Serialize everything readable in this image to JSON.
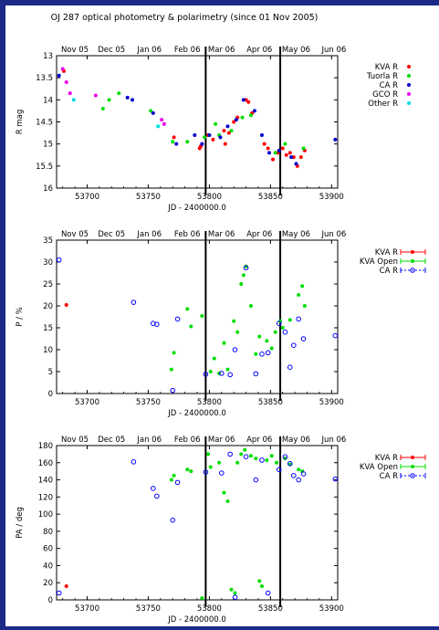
{
  "page_title": "OJ 287 optical photometry & polarimetry (since 01 Nov 2005)",
  "colors": {
    "frame": "#1a2a86",
    "kva": "#ff0000",
    "tuorla": "#00dd00",
    "ca": "#0000cc",
    "gco": "#ee00ee",
    "other": "#00dddd",
    "kva_open": "#00dd00",
    "ca_open": "#0000ff"
  },
  "chart_data": [
    {
      "type": "scatter",
      "title": "",
      "xlabel": "JD - 2400000.0",
      "ylabel": "R mag",
      "xlim": [
        53675,
        53905
      ],
      "ylim": [
        16,
        13
      ],
      "y_inverted": true,
      "xticks": [
        "53700",
        "53750",
        "53800",
        "53850",
        "53900"
      ],
      "yticks": [
        "13",
        "13.5",
        "14",
        "14.5",
        "15",
        "15.5",
        "16"
      ],
      "top_axis_labels": [
        "Nov 05",
        "Dec 05",
        "Jan 06",
        "Feb 06",
        "Mar 06",
        "Apr 06",
        "May 06",
        "Jun 06"
      ],
      "top_axis_positions": [
        53675,
        53705,
        53736,
        53767,
        53795,
        53826,
        53856,
        53887
      ],
      "vertical_lines": [
        53797,
        53858
      ],
      "legend_placement": "right",
      "series": [
        {
          "name": "KVA R",
          "color": "#ff0000",
          "points": [
            [
              53681,
              13.35
            ],
            [
              53771,
              14.85
            ],
            [
              53792,
              15.1
            ],
            [
              53793,
              15.05
            ],
            [
              53799,
              14.8
            ],
            [
              53803,
              14.9
            ],
            [
              53812,
              14.7
            ],
            [
              53813,
              15.0
            ],
            [
              53816,
              14.75
            ],
            [
              53820,
              14.5
            ],
            [
              53823,
              14.4
            ],
            [
              53830,
              14.0
            ],
            [
              53832,
              14.05
            ],
            [
              53835,
              14.3
            ],
            [
              53845,
              15.0
            ],
            [
              53848,
              15.1
            ],
            [
              53852,
              15.35
            ],
            [
              53856,
              15.2
            ],
            [
              53860,
              15.1
            ],
            [
              53863,
              15.25
            ],
            [
              53866,
              15.2
            ],
            [
              53869,
              15.3
            ],
            [
              53872,
              15.5
            ],
            [
              53875,
              15.3
            ],
            [
              53878,
              15.15
            ]
          ]
        },
        {
          "name": "Tuorla R",
          "color": "#00dd00",
          "points": [
            [
              53713,
              14.2
            ],
            [
              53718,
              14.0
            ],
            [
              53726,
              13.85
            ],
            [
              53752,
              14.25
            ],
            [
              53770,
              14.95
            ],
            [
              53782,
              14.95
            ],
            [
              53796,
              14.85
            ],
            [
              53805,
              14.55
            ],
            [
              53808,
              14.8
            ],
            [
              53818,
              14.7
            ],
            [
              53827,
              14.4
            ],
            [
              53834,
              14.35
            ],
            [
              53854,
              15.2
            ],
            [
              53862,
              15.0
            ],
            [
              53877,
              15.1
            ]
          ]
        },
        {
          "name": "CA R",
          "color": "#0000cc",
          "points": [
            [
              53677,
              13.45
            ],
            [
              53733,
              13.95
            ],
            [
              53737,
              14.0
            ],
            [
              53754,
              14.3
            ],
            [
              53773,
              15.0
            ],
            [
              53788,
              14.8
            ],
            [
              53794,
              15.0
            ],
            [
              53800,
              14.8
            ],
            [
              53809,
              14.85
            ],
            [
              53815,
              14.6
            ],
            [
              53822,
              14.45
            ],
            [
              53828,
              14.0
            ],
            [
              53837,
              14.25
            ],
            [
              53843,
              14.8
            ],
            [
              53849,
              15.2
            ],
            [
              53857,
              15.15
            ],
            [
              53867,
              15.3
            ],
            [
              53871,
              15.45
            ],
            [
              53903,
              14.9
            ]
          ]
        },
        {
          "name": "GCO R",
          "color": "#ee00ee",
          "points": [
            [
              53680,
              13.3
            ],
            [
              53683,
              13.6
            ],
            [
              53686,
              13.85
            ],
            [
              53707,
              13.9
            ],
            [
              53761,
              14.45
            ],
            [
              53763,
              14.55
            ]
          ]
        },
        {
          "name": "Other R",
          "color": "#00dddd",
          "points": [
            [
              53689,
              14.0
            ],
            [
              53758,
              14.6
            ]
          ]
        }
      ]
    },
    {
      "type": "scatter",
      "title": "",
      "xlabel": "JD - 2400000.0",
      "ylabel": "P / %",
      "xlim": [
        53675,
        53905
      ],
      "ylim": [
        0,
        35
      ],
      "xticks": [
        "53700",
        "53750",
        "53800",
        "53850",
        "53900"
      ],
      "yticks": [
        "0",
        "5",
        "10",
        "15",
        "20",
        "25",
        "30",
        "35"
      ],
      "top_axis_labels": [
        "Nov 05",
        "Dec 05",
        "Jan 06",
        "Feb 06",
        "Mar 06",
        "Apr 06",
        "May 06",
        "Jun 06"
      ],
      "top_axis_positions": [
        53675,
        53705,
        53736,
        53767,
        53795,
        53826,
        53856,
        53887
      ],
      "vertical_lines": [
        53797,
        53858
      ],
      "legend_placement": "right",
      "series": [
        {
          "name": "KVA R",
          "color": "#ff0000",
          "points": [
            [
              53683,
              20.2
            ]
          ]
        },
        {
          "name": "KVA Open",
          "color": "#00dd00",
          "points": [
            [
              53769,
              5.5
            ],
            [
              53771,
              9.3
            ],
            [
              53782,
              19.3
            ],
            [
              53785,
              15.3
            ],
            [
              53794,
              17.7
            ],
            [
              53801,
              5.0
            ],
            [
              53804,
              8.0
            ],
            [
              53808,
              4.6
            ],
            [
              53812,
              11.5
            ],
            [
              53815,
              5.5
            ],
            [
              53820,
              16.5
            ],
            [
              53823,
              14.0
            ],
            [
              53826,
              25.0
            ],
            [
              53828,
              27.0
            ],
            [
              53830,
              29.0
            ],
            [
              53834,
              20.0
            ],
            [
              53838,
              9.0
            ],
            [
              53841,
              13.0
            ],
            [
              53847,
              12.0
            ],
            [
              53851,
              10.3
            ],
            [
              53854,
              14.0
            ],
            [
              53858,
              16.5
            ],
            [
              53860,
              15.0
            ],
            [
              53866,
              16.8
            ],
            [
              53873,
              22.5
            ],
            [
              53876,
              24.5
            ],
            [
              53878,
              20.0
            ]
          ]
        },
        {
          "name": "CA R",
          "color": "#0000ff",
          "points": [
            [
              53677,
              30.5
            ],
            [
              53738,
              20.8
            ],
            [
              53754,
              16.0
            ],
            [
              53757,
              15.8
            ],
            [
              53770,
              0.7
            ],
            [
              53774,
              17.0
            ],
            [
              53797,
              4.4
            ],
            [
              53810,
              4.6
            ],
            [
              53817,
              4.3
            ],
            [
              53821,
              10.0
            ],
            [
              53830,
              28.7
            ],
            [
              53838,
              4.5
            ],
            [
              53843,
              9.0
            ],
            [
              53848,
              9.3
            ],
            [
              53857,
              16.0
            ],
            [
              53862,
              14.0
            ],
            [
              53866,
              6.0
            ],
            [
              53869,
              11.0
            ],
            [
              53873,
              17.0
            ],
            [
              53877,
              12.5
            ],
            [
              53903,
              13.2
            ]
          ]
        }
      ]
    },
    {
      "type": "scatter",
      "title": "",
      "xlabel": "JD - 2400000.0",
      "ylabel": "PA / deg",
      "xlim": [
        53675,
        53905
      ],
      "ylim": [
        0,
        180
      ],
      "xticks": [
        "53700",
        "53750",
        "53800",
        "53850",
        "53900"
      ],
      "yticks": [
        "0",
        "20",
        "40",
        "60",
        "80",
        "100",
        "120",
        "140",
        "160",
        "180"
      ],
      "top_axis_labels": [
        "Nov 05",
        "Dec 05",
        "Jan 06",
        "Feb 06",
        "Mar 06",
        "Apr 06",
        "May 06",
        "Jun 06"
      ],
      "top_axis_positions": [
        53675,
        53705,
        53736,
        53767,
        53795,
        53826,
        53856,
        53887
      ],
      "vertical_lines": [
        53797,
        53858
      ],
      "legend_placement": "right",
      "series": [
        {
          "name": "KVA R",
          "color": "#ff0000",
          "points": [
            [
              53683,
              16
            ]
          ]
        },
        {
          "name": "KVA Open",
          "color": "#00dd00",
          "points": [
            [
              53769,
              140
            ],
            [
              53771,
              145
            ],
            [
              53782,
              152
            ],
            [
              53785,
              150
            ],
            [
              53794,
              2
            ],
            [
              53799,
              170
            ],
            [
              53801,
              155
            ],
            [
              53808,
              160
            ],
            [
              53812,
              125
            ],
            [
              53815,
              115
            ],
            [
              53818,
              12
            ],
            [
              53821,
              8
            ],
            [
              53823,
              160
            ],
            [
              53826,
              170
            ],
            [
              53829,
              175
            ],
            [
              53834,
              168
            ],
            [
              53838,
              165
            ],
            [
              53841,
              22
            ],
            [
              53843,
              16
            ],
            [
              53847,
              163
            ],
            [
              53851,
              168
            ],
            [
              53855,
              160
            ],
            [
              53862,
              165
            ],
            [
              53866,
              158
            ],
            [
              53873,
              152
            ],
            [
              53876,
              150
            ]
          ]
        },
        {
          "name": "CA R",
          "color": "#0000ff",
          "points": [
            [
              53677,
              8
            ],
            [
              53738,
              161
            ],
            [
              53754,
              130
            ],
            [
              53757,
              121
            ],
            [
              53770,
              93
            ],
            [
              53774,
              137
            ],
            [
              53797,
              149
            ],
            [
              53810,
              148
            ],
            [
              53817,
              170
            ],
            [
              53821,
              3
            ],
            [
              53830,
              167
            ],
            [
              53838,
              140
            ],
            [
              53843,
              163
            ],
            [
              53848,
              8
            ],
            [
              53857,
              152
            ],
            [
              53862,
              167
            ],
            [
              53866,
              159
            ],
            [
              53869,
              145
            ],
            [
              53873,
              140
            ],
            [
              53877,
              147
            ],
            [
              53903,
              141
            ]
          ]
        }
      ]
    }
  ]
}
